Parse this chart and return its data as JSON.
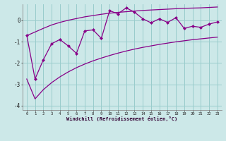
{
  "xlabel": "Windchill (Refroidissement éolien,°C)",
  "x_values": [
    0,
    1,
    2,
    3,
    4,
    5,
    6,
    7,
    8,
    9,
    10,
    11,
    12,
    13,
    14,
    15,
    16,
    17,
    18,
    19,
    20,
    21,
    22,
    23
  ],
  "y_main": [
    -0.7,
    -2.75,
    -1.85,
    -1.1,
    -0.9,
    -1.2,
    -1.55,
    -0.5,
    -0.45,
    -0.85,
    0.45,
    0.3,
    0.58,
    0.38,
    0.07,
    -0.12,
    0.07,
    -0.1,
    0.12,
    -0.38,
    -0.28,
    -0.33,
    -0.18,
    -0.08
  ],
  "smooth_upper": [
    -0.72,
    -0.55,
    -0.38,
    -0.22,
    -0.1,
    0.0,
    0.08,
    0.16,
    0.22,
    0.28,
    0.33,
    0.37,
    0.4,
    0.43,
    0.46,
    0.48,
    0.5,
    0.52,
    0.54,
    0.56,
    0.57,
    0.58,
    0.6,
    0.62
  ],
  "smooth_lower": [
    -2.75,
    -3.68,
    -3.25,
    -2.92,
    -2.65,
    -2.42,
    -2.22,
    -2.05,
    -1.9,
    -1.77,
    -1.65,
    -1.54,
    -1.44,
    -1.35,
    -1.27,
    -1.2,
    -1.13,
    -1.07,
    -1.01,
    -0.96,
    -0.91,
    -0.87,
    -0.83,
    -0.79
  ],
  "line_color": "#880088",
  "bg_color": "#cce8e8",
  "grid_color": "#99cccc",
  "ylim": [
    -4.2,
    0.75
  ],
  "xlim": [
    -0.5,
    23.5
  ],
  "yticks": [
    0,
    -1,
    -2,
    -3,
    -4
  ],
  "xtick_labels": [
    "0",
    "1",
    "2",
    "3",
    "4",
    "5",
    "6",
    "7",
    "8",
    "9",
    "10",
    "11",
    "12",
    "13",
    "14",
    "15",
    "16",
    "17",
    "18",
    "19",
    "20",
    "21",
    "22",
    "23"
  ]
}
